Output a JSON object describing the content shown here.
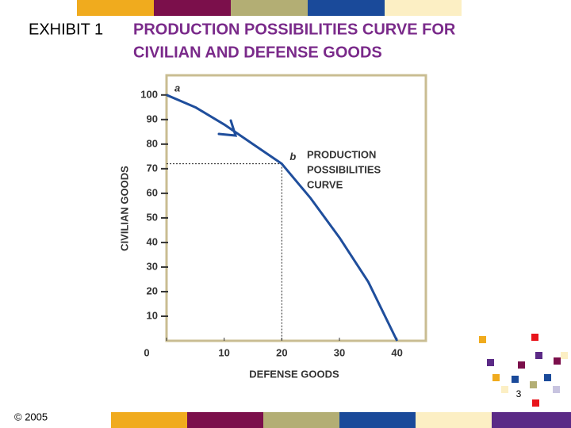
{
  "slide": {
    "exhibit": "EXHIBIT 1",
    "title_lines": [
      "PRODUCTION POSSIBILITIES CURVE FOR",
      "CIVILIAN AND DEFENSE GOODS"
    ],
    "footer": "© 2005",
    "page_number": "3"
  },
  "chart_data": {
    "type": "line",
    "x": [
      0,
      5,
      10,
      15,
      20,
      25,
      30,
      35,
      40
    ],
    "series": [
      {
        "color": "#1f4e9c",
        "values": [
          100,
          95,
          88,
          80,
          72,
          58,
          42,
          24,
          0
        ]
      }
    ],
    "xlabel": "DEFENSE GOODS",
    "ylabel": "CIVILIAN GOODS",
    "xlim": [
      0,
      45
    ],
    "ylim": [
      0,
      108
    ],
    "xticks": [
      0,
      10,
      20,
      30,
      40
    ],
    "yticks": [
      10,
      20,
      30,
      40,
      50,
      60,
      70,
      80,
      90,
      100
    ],
    "annotations": [
      {
        "label": "a",
        "x": 0,
        "y": 100
      },
      {
        "label": "b",
        "x": 20,
        "y": 72
      }
    ],
    "curve_label": [
      "PRODUCTION",
      "POSSIBILITIES",
      "CURVE"
    ]
  }
}
